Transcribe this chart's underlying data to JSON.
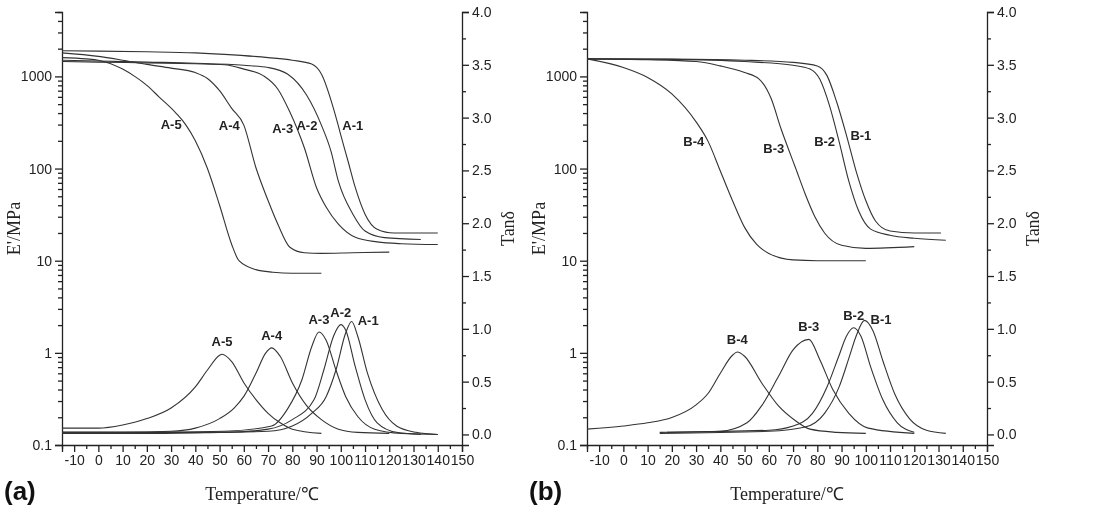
{
  "chart_data": [
    {
      "type": "line",
      "xlabel": "Temperature/℃",
      "ylabel": "E'/MPa",
      "y2label": "Tanδ",
      "log": "y",
      "xlim": [
        -15,
        150
      ],
      "ylim": [
        0.1,
        5000
      ],
      "y2lim": [
        -0.1,
        4.0
      ],
      "xticks": [
        {
          "value": -15,
          "label": null
        },
        -10,
        {
          "value": -5,
          "label": null
        },
        0,
        {
          "value": 5,
          "label": null
        },
        10,
        {
          "value": 15,
          "label": null
        },
        20,
        {
          "value": 25,
          "label": null
        },
        30,
        {
          "value": 35,
          "label": null
        },
        40,
        {
          "value": 45,
          "label": null
        },
        50,
        {
          "value": 55,
          "label": null
        },
        60,
        {
          "value": 65,
          "label": null
        },
        70,
        {
          "value": 75,
          "label": null
        },
        80,
        {
          "value": 85,
          "label": null
        },
        90,
        {
          "value": 95,
          "label": null
        },
        100,
        {
          "value": 105,
          "label": null
        },
        110,
        {
          "value": 115,
          "label": null
        },
        120,
        {
          "value": 125,
          "label": null
        },
        130,
        {
          "value": 135,
          "label": null
        },
        140,
        {
          "value": 145,
          "label": null
        },
        150
      ],
      "yticks": [
        0.1,
        {
          "value": 0.2,
          "label": null
        },
        {
          "value": 0.3,
          "label": null
        },
        {
          "value": 0.4,
          "label": null
        },
        {
          "value": 0.5,
          "label": null
        },
        {
          "value": 0.6,
          "label": null
        },
        {
          "value": 0.7,
          "label": null
        },
        {
          "value": 0.8,
          "label": null
        },
        {
          "value": 0.9,
          "label": null
        },
        1,
        {
          "value": 2,
          "label": null
        },
        {
          "value": 3,
          "label": null
        },
        {
          "value": 4,
          "label": null
        },
        {
          "value": 5,
          "label": null
        },
        {
          "value": 6,
          "label": null
        },
        {
          "value": 7,
          "label": null
        },
        {
          "value": 8,
          "label": null
        },
        {
          "value": 9,
          "label": null
        },
        10,
        {
          "value": 20,
          "label": null
        },
        {
          "value": 30,
          "label": null
        },
        {
          "value": 40,
          "label": null
        },
        {
          "value": 50,
          "label": null
        },
        {
          "value": 60,
          "label": null
        },
        {
          "value": 70,
          "label": null
        },
        {
          "value": 80,
          "label": null
        },
        {
          "value": 90,
          "label": null
        },
        100,
        {
          "value": 200,
          "label": null
        },
        {
          "value": 300,
          "label": null
        },
        {
          "value": 400,
          "label": null
        },
        {
          "value": 500,
          "label": null
        },
        {
          "value": 600,
          "label": null
        },
        {
          "value": 700,
          "label": null
        },
        {
          "value": 800,
          "label": null
        },
        {
          "value": 900,
          "label": null
        },
        1000,
        {
          "value": 2000,
          "label": null
        },
        {
          "value": 3000,
          "label": null
        },
        {
          "value": 4000,
          "label": null
        },
        {
          "value": 5000,
          "label": null
        }
      ],
      "y2ticks": [
        {
          "value": 0,
          "label": "0.0"
        },
        {
          "value": 0.25,
          "label": null
        },
        0.5,
        {
          "value": 0.75,
          "label": null
        },
        {
          "value": 1,
          "label": "1.0"
        },
        {
          "value": 1.25,
          "label": null
        },
        1.5,
        {
          "value": 1.75,
          "label": null
        },
        {
          "value": 2,
          "label": "2.0"
        },
        {
          "value": 2.25,
          "label": null
        },
        2.5,
        {
          "value": 2.75,
          "label": null
        },
        {
          "value": 3,
          "label": "3.0"
        },
        {
          "value": 3.25,
          "label": null
        },
        3.5,
        {
          "value": 3.75,
          "label": null
        },
        {
          "value": 4,
          "label": "4.0"
        }
      ],
      "series": [
        {
          "color": "#333333",
          "x": [
            -15,
            0,
            20,
            40,
            52,
            70,
            80,
            88,
            92,
            97,
            99,
            100,
            103,
            106,
            110,
            115,
            122,
            140
          ],
          "values": [
            1900,
            1880,
            1850,
            1800,
            1735,
            1600,
            1500,
            1360,
            1060,
            447,
            290,
            231,
            120,
            62,
            32,
            22,
            20,
            20
          ]
        },
        {
          "color": "#333333",
          "x": [
            -15,
            0,
            20,
            40,
            60,
            70,
            78,
            86,
            92,
            96,
            99,
            105,
            110,
            118,
            133
          ],
          "values": [
            1500,
            1470,
            1430,
            1390,
            1320,
            1250,
            1060,
            620,
            296,
            153,
            73,
            32,
            21,
            17.8,
            17
          ]
        },
        {
          "color": "#333333",
          "x": [
            -15,
            0,
            20,
            40,
            52,
            60,
            68,
            74,
            79,
            82,
            85,
            90,
            94,
            99,
            106,
            115,
            125,
            140
          ],
          "values": [
            1450,
            1430,
            1400,
            1370,
            1340,
            1200,
            1020,
            730,
            410,
            270,
            167,
            62,
            38,
            25,
            18,
            16,
            15.3,
            15
          ]
        },
        {
          "color": "#333333",
          "x": [
            -15,
            0,
            10,
            20,
            30,
            40,
            45,
            50,
            55,
            60,
            65,
            70,
            74,
            79,
            85,
            92,
            105,
            120
          ],
          "values": [
            1800,
            1650,
            1500,
            1350,
            1230,
            1100,
            950,
            700,
            450,
            296,
            102,
            45,
            25,
            14,
            12.2,
            12,
            12.2,
            12.4
          ]
        },
        {
          "color": "#333333",
          "x": [
            -15,
            -5,
            0,
            10,
            15,
            20,
            25,
            32,
            36,
            40,
            45,
            50,
            55,
            58,
            65,
            72,
            80,
            92
          ],
          "values": [
            1600,
            1550,
            1500,
            1200,
            1000,
            800,
            600,
            400,
            300,
            200,
            100,
            40,
            15,
            10,
            8,
            7.5,
            7.3,
            7.3
          ]
        },
        {
          "color": "#333333",
          "axis": "y2",
          "x": [
            -15,
            20,
            50,
            70,
            80,
            88,
            94,
            98,
            102,
            104.5,
            107,
            111,
            117,
            123,
            131,
            140
          ],
          "values": [
            0.01,
            0.01,
            0.02,
            0.03,
            0.08,
            0.2,
            0.36,
            0.61,
            0.96,
            1.07,
            0.93,
            0.58,
            0.24,
            0.08,
            0.02,
            0.0
          ]
        },
        {
          "color": "#333333",
          "axis": "y2",
          "x": [
            -15,
            20,
            52,
            70,
            80,
            89,
            93,
            97,
            100,
            102,
            106,
            110,
            115,
            123,
            133
          ],
          "values": [
            0.02,
            0.02,
            0.02,
            0.05,
            0.14,
            0.33,
            0.61,
            0.93,
            1.04,
            0.99,
            0.64,
            0.33,
            0.11,
            0.02,
            0.0
          ]
        },
        {
          "color": "#333333",
          "axis": "y2",
          "x": [
            -15,
            20,
            52,
            71.5,
            78,
            84,
            88,
            91,
            94,
            98,
            102,
            107,
            114,
            125,
            140
          ],
          "values": [
            0.02,
            0.02,
            0.03,
            0.08,
            0.24,
            0.52,
            0.83,
            0.97,
            0.89,
            0.61,
            0.36,
            0.17,
            0.05,
            0.01,
            0.0
          ]
        },
        {
          "color": "#333333",
          "axis": "y2",
          "x": [
            -15,
            10,
            30,
            40,
            50,
            56,
            60,
            65,
            69,
            71.5,
            75,
            80,
            86,
            92,
            99,
            107,
            120
          ],
          "values": [
            0.02,
            0.02,
            0.03,
            0.06,
            0.15,
            0.25,
            0.36,
            0.58,
            0.77,
            0.82,
            0.74,
            0.49,
            0.27,
            0.14,
            0.05,
            0.02,
            0.01
          ]
        },
        {
          "color": "#333333",
          "axis": "y2",
          "x": [
            -15,
            0,
            10,
            20,
            30,
            40,
            45,
            50,
            51,
            55,
            60,
            65,
            70,
            75,
            80,
            92
          ],
          "values": [
            0.06,
            0.06,
            0.09,
            0.15,
            0.25,
            0.45,
            0.61,
            0.75,
            0.76,
            0.69,
            0.49,
            0.33,
            0.2,
            0.11,
            0.05,
            0.01
          ]
        }
      ],
      "annotations": [
        {
          "text": "A-5",
          "x": 36,
          "y": 300
        },
        {
          "text": "A-4",
          "x": 60,
          "y": 296
        },
        {
          "text": "A-3",
          "x": 82,
          "y": 270
        },
        {
          "text": "A-2",
          "x": 92,
          "y": 296
        },
        {
          "text": "A-1",
          "x": 99,
          "y": 290
        },
        {
          "text": "A-5",
          "x": 51,
          "y": 0.97
        },
        {
          "text": "A-4",
          "x": 71.5,
          "y": 1.13
        },
        {
          "text": "A-3",
          "x": 91,
          "y": 1.68
        },
        {
          "text": "A-2",
          "x": 100,
          "y": 2.03
        },
        {
          "text": "A-1",
          "x": 104.5,
          "y": 2.19
        },
        "(a)"
      ]
    },
    {
      "type": "line",
      "xlabel": "Temperature/℃",
      "ylabel": "E'/MPa",
      "y2label": "Tanδ",
      "log": "y",
      "xlim": [
        -15,
        150
      ],
      "ylim": [
        0.1,
        5000
      ],
      "y2lim": [
        -0.1,
        4.0
      ],
      "xticks": [
        {
          "value": -15,
          "label": null
        },
        -10,
        {
          "value": -5,
          "label": null
        },
        0,
        {
          "value": 5,
          "label": null
        },
        10,
        {
          "value": 15,
          "label": null
        },
        20,
        {
          "value": 25,
          "label": null
        },
        30,
        {
          "value": 35,
          "label": null
        },
        40,
        {
          "value": 45,
          "label": null
        },
        50,
        {
          "value": 55,
          "label": null
        },
        60,
        {
          "value": 65,
          "label": null
        },
        70,
        {
          "value": 75,
          "label": null
        },
        80,
        {
          "value": 85,
          "label": null
        },
        90,
        {
          "value": 95,
          "label": null
        },
        100,
        {
          "value": 105,
          "label": null
        },
        110,
        {
          "value": 115,
          "label": null
        },
        120,
        {
          "value": 125,
          "label": null
        },
        130,
        {
          "value": 135,
          "label": null
        },
        140,
        {
          "value": 145,
          "label": null
        },
        150
      ],
      "yticks": [
        0.1,
        {
          "value": 0.2,
          "label": null
        },
        {
          "value": 0.3,
          "label": null
        },
        {
          "value": 0.4,
          "label": null
        },
        {
          "value": 0.5,
          "label": null
        },
        {
          "value": 0.6,
          "label": null
        },
        {
          "value": 0.7,
          "label": null
        },
        {
          "value": 0.8,
          "label": null
        },
        {
          "value": 0.9,
          "label": null
        },
        1,
        {
          "value": 2,
          "label": null
        },
        {
          "value": 3,
          "label": null
        },
        {
          "value": 4,
          "label": null
        },
        {
          "value": 5,
          "label": null
        },
        {
          "value": 6,
          "label": null
        },
        {
          "value": 7,
          "label": null
        },
        {
          "value": 8,
          "label": null
        },
        {
          "value": 9,
          "label": null
        },
        10,
        {
          "value": 20,
          "label": null
        },
        {
          "value": 30,
          "label": null
        },
        {
          "value": 40,
          "label": null
        },
        {
          "value": 50,
          "label": null
        },
        {
          "value": 60,
          "label": null
        },
        {
          "value": 70,
          "label": null
        },
        {
          "value": 80,
          "label": null
        },
        {
          "value": 90,
          "label": null
        },
        100,
        {
          "value": 200,
          "label": null
        },
        {
          "value": 300,
          "label": null
        },
        {
          "value": 400,
          "label": null
        },
        {
          "value": 500,
          "label": null
        },
        {
          "value": 600,
          "label": null
        },
        {
          "value": 700,
          "label": null
        },
        {
          "value": 800,
          "label": null
        },
        {
          "value": 900,
          "label": null
        },
        1000,
        {
          "value": 2000,
          "label": null
        },
        {
          "value": 3000,
          "label": null
        },
        {
          "value": 4000,
          "label": null
        },
        {
          "value": 5000,
          "label": null
        }
      ],
      "y2ticks": [
        {
          "value": 0,
          "label": "0.0"
        },
        {
          "value": 0.25,
          "label": null
        },
        0.5,
        {
          "value": 0.75,
          "label": null
        },
        {
          "value": 1,
          "label": "1.0"
        },
        {
          "value": 1.25,
          "label": null
        },
        1.5,
        {
          "value": 1.75,
          "label": null
        },
        {
          "value": 2,
          "label": "2.0"
        },
        {
          "value": 2.25,
          "label": null
        },
        2.5,
        {
          "value": 2.75,
          "label": null
        },
        {
          "value": 3,
          "label": "3.0"
        },
        {
          "value": 3.25,
          "label": null
        },
        3.5,
        {
          "value": 3.75,
          "label": null
        },
        {
          "value": 4,
          "label": "4.0"
        }
      ],
      "series": [
        {
          "color": "#333333",
          "x": [
            -15,
            20,
            50,
            70,
            80,
            84,
            88,
            92,
            96,
            100,
            104,
            110,
            120,
            131
          ],
          "values": [
            1550,
            1540,
            1500,
            1420,
            1300,
            1020,
            527,
            231,
            94,
            45,
            27,
            21,
            20,
            20
          ]
        },
        {
          "color": "#333333",
          "x": [
            -15,
            20,
            50,
            70,
            77,
            81,
            85,
            89,
            93,
            97,
            102,
            110,
            120,
            133
          ],
          "values": [
            1550,
            1530,
            1450,
            1320,
            1200,
            935,
            485,
            196,
            73,
            35,
            22,
            18.9,
            17.5,
            16.7
          ]
        },
        {
          "color": "#333333",
          "x": [
            -15,
            10,
            30,
            40,
            50,
            56,
            61,
            65,
            68,
            71,
            75,
            79,
            83,
            90,
            100,
            120
          ],
          "values": [
            1550,
            1520,
            1450,
            1300,
            1100,
            935,
            572,
            272,
            165,
            102,
            53,
            30,
            20,
            14.7,
            13.6,
            14.2
          ]
        },
        {
          "color": "#333333",
          "x": [
            -15,
            0,
            10,
            20,
            30,
            35,
            40,
            45,
            50,
            55,
            60,
            70,
            80,
            100
          ],
          "values": [
            1550,
            1250,
            975,
            646,
            321,
            196,
            94,
            45,
            23,
            15,
            12,
            10.2,
            10,
            10
          ]
        },
        {
          "color": "#333333",
          "axis": "y2",
          "x": [
            15,
            60,
            75,
            83,
            89,
            93,
            96,
            99.5,
            103,
            107,
            112,
            118,
            125,
            133
          ],
          "values": [
            0.01,
            0.03,
            0.07,
            0.2,
            0.45,
            0.72,
            0.93,
            1.08,
            0.98,
            0.7,
            0.38,
            0.15,
            0.04,
            0.01
          ]
        },
        {
          "color": "#333333",
          "axis": "y2",
          "x": [
            18,
            60,
            70,
            78,
            84,
            89,
            92,
            95,
            98,
            102,
            107,
            113,
            120
          ],
          "values": [
            0.02,
            0.04,
            0.08,
            0.2,
            0.45,
            0.75,
            0.93,
            1.01,
            0.93,
            0.64,
            0.33,
            0.11,
            0.02
          ]
        },
        {
          "color": "#333333",
          "axis": "y2",
          "x": [
            15,
            40,
            51,
            57,
            64,
            70,
            76.5,
            81,
            86.5,
            93,
            101,
            120
          ],
          "values": [
            0.02,
            0.03,
            0.11,
            0.27,
            0.55,
            0.8,
            0.9,
            0.71,
            0.42,
            0.2,
            0.06,
            0.01
          ]
        },
        {
          "color": "#333333",
          "axis": "y2",
          "x": [
            -15,
            0,
            10,
            20,
            30,
            35,
            40,
            45,
            47,
            50,
            57,
            64,
            71,
            77,
            88,
            100
          ],
          "values": [
            0.05,
            0.08,
            0.11,
            0.16,
            0.28,
            0.39,
            0.58,
            0.75,
            0.78,
            0.74,
            0.49,
            0.27,
            0.13,
            0.05,
            0.02,
            0.01
          ]
        }
      ],
      "annotations": [
        {
          "text": "B-4",
          "x": 35,
          "y": 196
        },
        {
          "text": "B-3",
          "x": 68,
          "y": 165
        },
        {
          "text": "B-2",
          "x": 89,
          "y": 196
        },
        {
          "text": "B-1",
          "x": 92,
          "y": 231
        },
        {
          "text": "B-4",
          "x": 47,
          "y": 1.02
        },
        {
          "text": "B-3",
          "x": 76.5,
          "y": 1.4
        },
        {
          "text": "B-2",
          "x": 95,
          "y": 1.87
        },
        {
          "text": "B-1",
          "x": 99.5,
          "y": 2.25
        },
        "(b)"
      ]
    }
  ]
}
